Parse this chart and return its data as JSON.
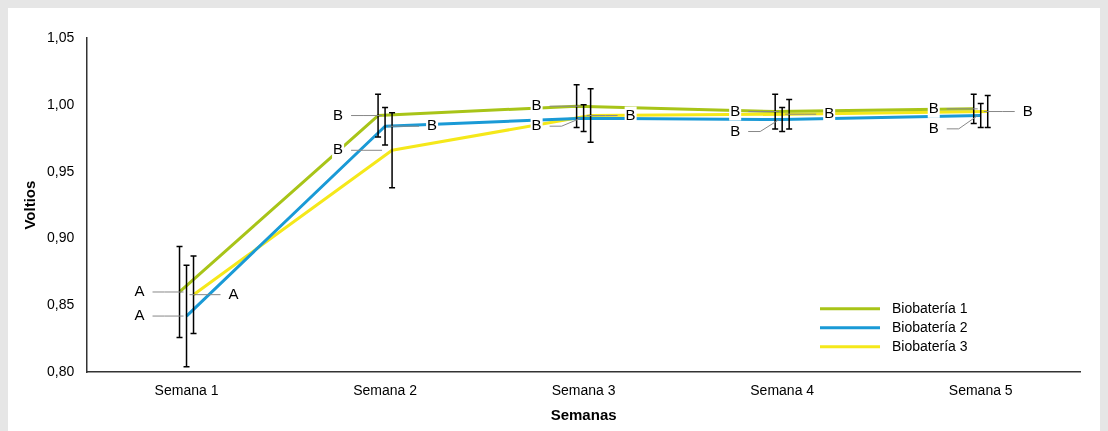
{
  "chart_data": {
    "type": "line",
    "xlabel": "Semanas",
    "ylabel": "Voltios",
    "categories": [
      "Semana 1",
      "Semana 2",
      "Semana 3",
      "Semana 4",
      "Semana 5"
    ],
    "series": [
      {
        "name": "Biobatería 1",
        "color": "#a8c418",
        "values": [
          0.86,
          0.992,
          0.999,
          0.995,
          0.997
        ],
        "errors": [
          0.034,
          0.016,
          0.016,
          0.013,
          0.011
        ]
      },
      {
        "name": "Biobatería 2",
        "color": "#1a9ad6",
        "values": [
          0.842,
          0.984,
          0.99,
          0.989,
          0.992
        ],
        "errors": [
          0.038,
          0.014,
          0.01,
          0.009,
          0.009
        ]
      },
      {
        "name": "Biobatería 3",
        "color": "#f5e81a",
        "values": [
          0.858,
          0.966,
          0.992,
          0.993,
          0.995
        ],
        "errors": [
          0.029,
          0.028,
          0.02,
          0.011,
          0.012
        ]
      }
    ],
    "ylim": [
      0.8,
      1.05
    ],
    "yticks": [
      {
        "value": 0.8,
        "label": "0,80"
      },
      {
        "value": 0.85,
        "label": "0,85"
      },
      {
        "value": 0.9,
        "label": "0,90"
      },
      {
        "value": 0.95,
        "label": "0,95"
      },
      {
        "value": 1.0,
        "label": "1,00"
      },
      {
        "value": 1.05,
        "label": "1,05"
      }
    ],
    "grid": false,
    "legend": "bottom right",
    "marker": "none",
    "line_style": "solid",
    "annotations": [
      {
        "text": "A",
        "x": "Semana 1",
        "y": 0.86
      },
      {
        "text": "A",
        "x": "Semana 1",
        "y": 0.858
      },
      {
        "text": "A",
        "x": "Semana 1",
        "y": 0.842
      },
      {
        "text": "B",
        "x": "Semana 2",
        "y": 0.992
      },
      {
        "text": "B",
        "x": "Semana 2",
        "y": 0.984
      },
      {
        "text": "B",
        "x": "Semana 2",
        "y": 0.966
      },
      {
        "text": "B",
        "x": "Semana 3",
        "y": 0.999
      },
      {
        "text": "B",
        "x": "Semana 3",
        "y": 0.99
      },
      {
        "text": "B",
        "x": "Semana 3",
        "y": 0.992
      },
      {
        "text": "B",
        "x": "Semana 4",
        "y": 0.995
      },
      {
        "text": "B",
        "x": "Semana 4",
        "y": 0.989
      },
      {
        "text": "B",
        "x": "Semana 4",
        "y": 0.993
      },
      {
        "text": "B",
        "x": "Semana 5",
        "y": 0.997
      },
      {
        "text": "B",
        "x": "Semana 5",
        "y": 0.992
      },
      {
        "text": "B",
        "x": "Semana 5",
        "y": 0.995
      }
    ]
  }
}
